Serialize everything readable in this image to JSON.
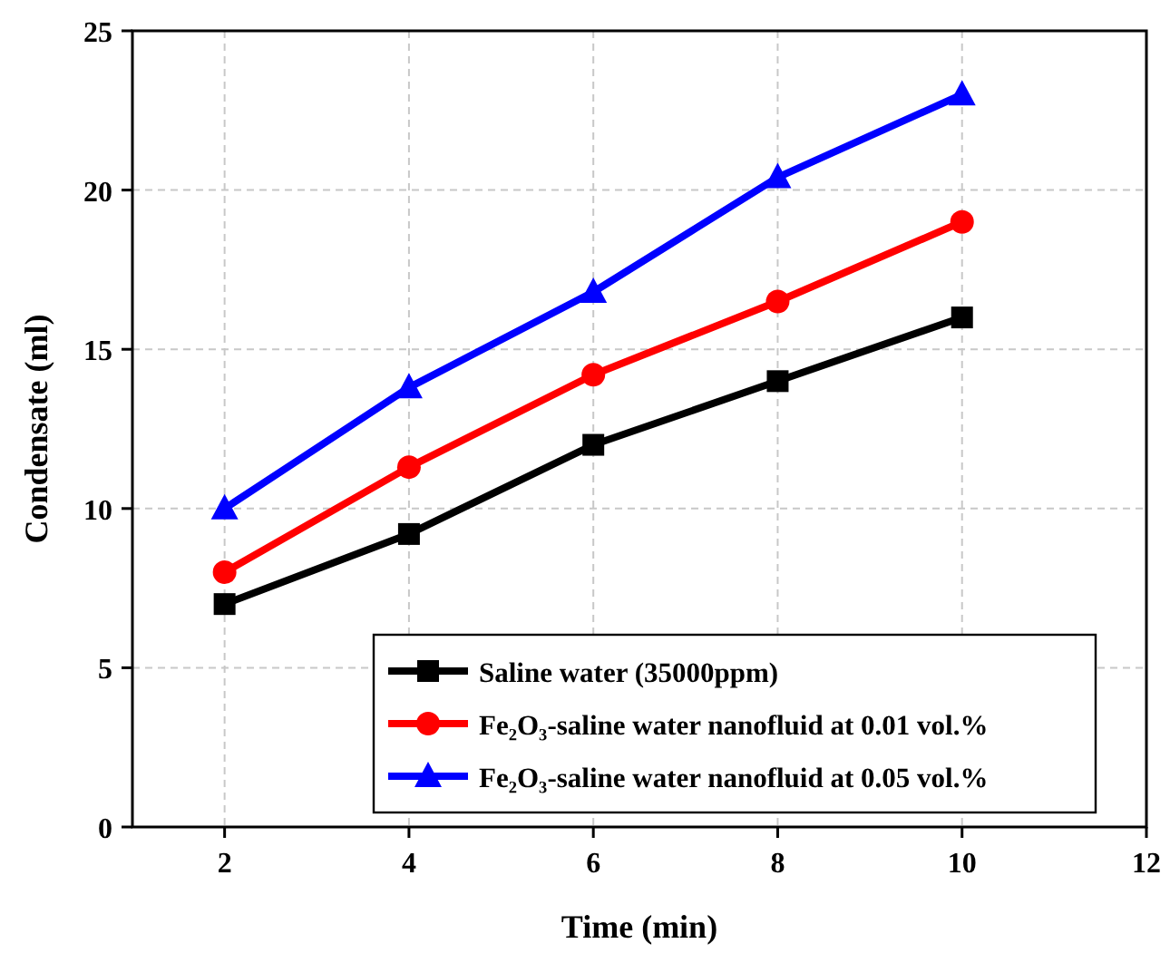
{
  "chart_data": {
    "type": "line",
    "xlabel": "Time (min)",
    "ylabel": "Condensate (ml)",
    "x": [
      2,
      4,
      6,
      8,
      10
    ],
    "series": [
      {
        "name": "Saline water (35000ppm)",
        "color": "#000000",
        "marker": "square",
        "values": [
          7,
          9.2,
          12,
          14,
          16
        ]
      },
      {
        "name": "Fe₂O₃-saline water nanofluid at 0.01 vol.%",
        "color": "#ff0000",
        "marker": "circle",
        "values": [
          8,
          11.3,
          14.2,
          16.5,
          19
        ]
      },
      {
        "name": "Fe₂O₃-saline water nanofluid at 0.05 vol.%",
        "color": "#0000ff",
        "marker": "triangle",
        "values": [
          10,
          13.8,
          16.8,
          20.4,
          23
        ]
      }
    ],
    "xlim": [
      1,
      12
    ],
    "xticks": [
      2,
      4,
      6,
      8,
      10,
      12
    ],
    "ylim": [
      0,
      25
    ],
    "yticks": [
      0,
      5,
      10,
      15,
      20,
      25
    ],
    "grid": true,
    "legend": "bottom right",
    "line_style": "solid"
  }
}
